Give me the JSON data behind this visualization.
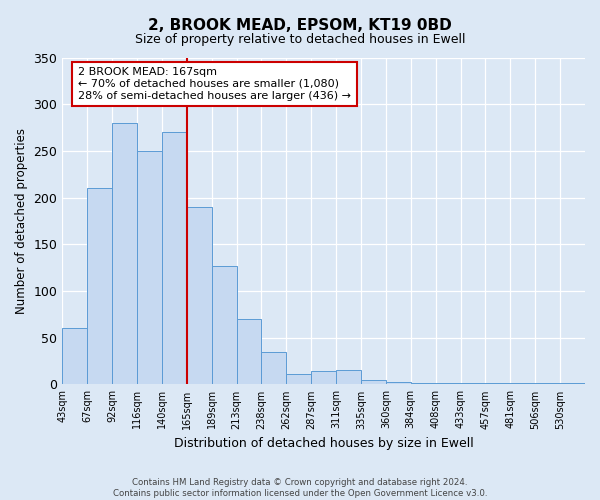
{
  "title": "2, BROOK MEAD, EPSOM, KT19 0BD",
  "subtitle": "Size of property relative to detached houses in Ewell",
  "xlabel": "Distribution of detached houses by size in Ewell",
  "ylabel": "Number of detached properties",
  "bin_labels": [
    "43sqm",
    "67sqm",
    "92sqm",
    "116sqm",
    "140sqm",
    "165sqm",
    "189sqm",
    "213sqm",
    "238sqm",
    "262sqm",
    "287sqm",
    "311sqm",
    "335sqm",
    "360sqm",
    "384sqm",
    "408sqm",
    "433sqm",
    "457sqm",
    "481sqm",
    "506sqm",
    "530sqm"
  ],
  "bar_heights": [
    60,
    210,
    280,
    250,
    270,
    190,
    127,
    70,
    35,
    11,
    14,
    15,
    5,
    3,
    2,
    1,
    1,
    1,
    1,
    1,
    1
  ],
  "bar_color": "#c6d9f1",
  "bar_edge_color": "#5b9bd5",
  "vline_color": "#cc0000",
  "ylim": [
    0,
    350
  ],
  "yticks": [
    0,
    50,
    100,
    150,
    200,
    250,
    300,
    350
  ],
  "annotation_title": "2 BROOK MEAD: 167sqm",
  "annotation_line1": "← 70% of detached houses are smaller (1,080)",
  "annotation_line2": "28% of semi-detached houses are larger (436) →",
  "footer1": "Contains HM Land Registry data © Crown copyright and database right 2024.",
  "footer2": "Contains public sector information licensed under the Open Government Licence v3.0.",
  "bg_color": "#dce8f5",
  "plot_bg_color": "#dce8f5"
}
